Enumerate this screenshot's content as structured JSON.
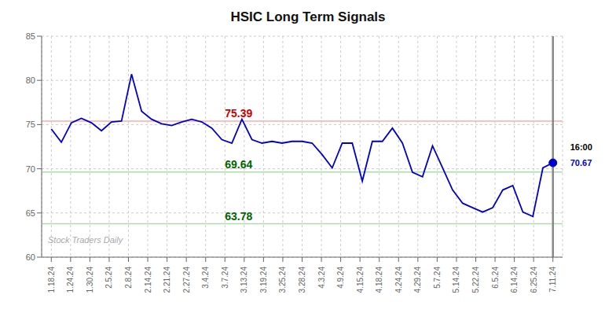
{
  "chart_data": {
    "type": "line",
    "title": "HSIC Long Term Signals",
    "x": [
      0,
      0.52,
      1.04,
      1.56,
      2.08,
      2.6,
      3.12,
      3.64,
      4.16,
      4.68,
      5.2,
      5.72,
      6.24,
      6.76,
      7.28,
      7.8,
      8.32,
      8.84,
      9.36,
      9.88,
      10.4,
      10.92,
      11.44,
      11.96,
      12.48,
      13,
      13.52,
      14.04,
      14.56,
      15.08,
      15.6,
      16.12,
      16.64,
      17.16,
      17.68,
      18.2,
      18.72,
      19.24,
      19.76,
      20.28,
      20.8,
      21.32,
      21.84,
      22.36,
      22.88,
      23.4,
      23.92,
      24.44,
      24.96,
      25.48,
      26
    ],
    "values": [
      74.5,
      73.0,
      75.2,
      75.7,
      75.2,
      74.3,
      75.3,
      75.4,
      80.7,
      76.5,
      75.6,
      75.1,
      74.9,
      75.3,
      75.6,
      75.3,
      74.6,
      73.3,
      72.9,
      75.6,
      73.3,
      72.9,
      73.1,
      72.9,
      73.1,
      73.1,
      72.9,
      71.6,
      70.1,
      72.9,
      72.9,
      68.6,
      73.1,
      73.1,
      74.6,
      72.9,
      69.6,
      69.1,
      72.6,
      70.1,
      67.6,
      66.1,
      65.6,
      65.1,
      65.6,
      67.6,
      68.1,
      65.1,
      64.6,
      70.1,
      70.67
    ],
    "color": "#0000cc",
    "xlim": [
      -0.5,
      26.5
    ],
    "xticks": [
      {
        "value": 0,
        "label": "1.18.24"
      },
      {
        "value": 1,
        "label": "1.24.24"
      },
      {
        "value": 2,
        "label": "1.30.24"
      },
      {
        "value": 3,
        "label": "2.5.24"
      },
      {
        "value": 4,
        "label": "2.8.24"
      },
      {
        "value": 5,
        "label": "2.14.24"
      },
      {
        "value": 6,
        "label": "2.21.24"
      },
      {
        "value": 7,
        "label": "2.27.24"
      },
      {
        "value": 8,
        "label": "3.4.24"
      },
      {
        "value": 9,
        "label": "3.7.24"
      },
      {
        "value": 10,
        "label": "3.13.24"
      },
      {
        "value": 11,
        "label": "3.19.24"
      },
      {
        "value": 12,
        "label": "3.25.24"
      },
      {
        "value": 13,
        "label": "3.28.24"
      },
      {
        "value": 14,
        "label": "4.3.24"
      },
      {
        "value": 15,
        "label": "4.9.24"
      },
      {
        "value": 16,
        "label": "4.15.24"
      },
      {
        "value": 17,
        "label": "4.18.24"
      },
      {
        "value": 18,
        "label": "4.24.24"
      },
      {
        "value": 19,
        "label": "4.29.24"
      },
      {
        "value": 20,
        "label": "5.7.24"
      },
      {
        "value": 21,
        "label": "5.14.24"
      },
      {
        "value": 22,
        "label": "5.22.24"
      },
      {
        "value": 23,
        "label": "6.5.24"
      },
      {
        "value": 24,
        "label": "6.14.24"
      },
      {
        "value": 25,
        "label": "6.25.24"
      },
      {
        "value": 26,
        "label": "7.11.24"
      }
    ],
    "ylim": [
      60,
      85
    ],
    "yticks": [
      60,
      65,
      70,
      75,
      80,
      85
    ],
    "grid": true,
    "annotations": [
      {
        "text": "75.39",
        "y": 75.39,
        "color": "#cc0000",
        "line_color": "#ffaaaa"
      },
      {
        "text": "69.64",
        "y": 69.64,
        "color": "#006600",
        "line_color": "#aaddaa"
      },
      {
        "text": "63.78",
        "y": 63.78,
        "color": "#006600",
        "line_color": "#aaddaa"
      }
    ],
    "watermark": "Stock Traders Daily",
    "last_point": {
      "label": "16:00",
      "value": 70.67
    }
  }
}
